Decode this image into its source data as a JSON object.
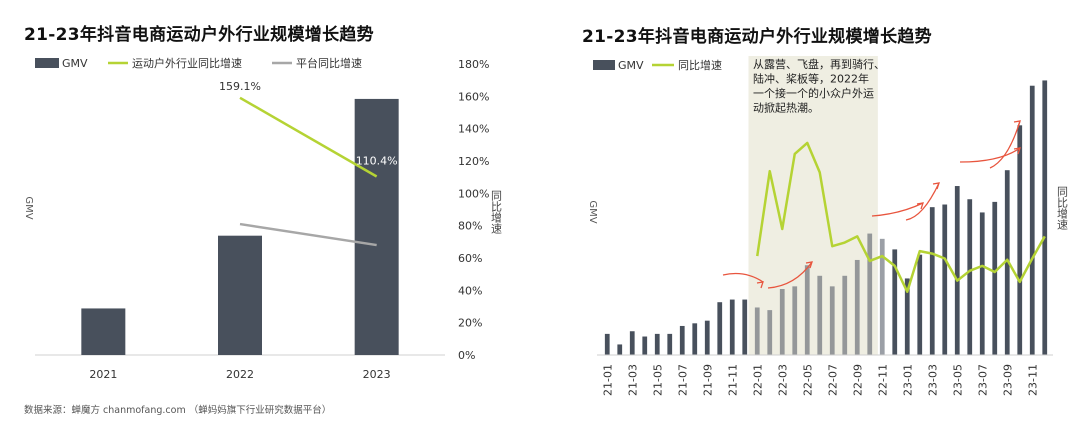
{
  "page": {
    "source": "数据来源：蝉魔方 chanmofang.com （蝉妈妈旗下行业研究数据平台）"
  },
  "chart_data": [
    {
      "type": "bar",
      "title": "21-23年抖音电商运动户外行业规模增长趋势",
      "categories": [
        "2021",
        "2022",
        "2023"
      ],
      "series": [
        {
          "name": "GMV",
          "kind": "bar",
          "axis": "left",
          "values": [
            0.16,
            0.41,
            0.88
          ]
        },
        {
          "name": "运动户外行业同比增速",
          "kind": "line",
          "axis": "right",
          "values": [
            null,
            159.1,
            110.4
          ]
        },
        {
          "name": "平台同比增速",
          "kind": "line",
          "axis": "right",
          "values": [
            null,
            81,
            68
          ]
        }
      ],
      "data_labels": [
        "159.1%",
        "110.4%"
      ],
      "ylabel": "GMV",
      "y2label": "同比增速",
      "y2lim": [
        0,
        180
      ],
      "y2ticks": [
        "0%",
        "20%",
        "40%",
        "60%",
        "80%",
        "100%",
        "120%",
        "140%",
        "160%",
        "180%"
      ],
      "colors": {
        "bar": "#48505c",
        "industry": "#b5d334",
        "platform": "#a7a7a7"
      },
      "legend": "top-left",
      "grid": false
    },
    {
      "type": "bar",
      "title": "21-23年抖音电商运动户外行业规模增长趋势",
      "categories": [
        "21-01",
        "21-02",
        "21-03",
        "21-04",
        "21-05",
        "21-06",
        "21-07",
        "21-08",
        "21-09",
        "21-10",
        "21-11",
        "21-12",
        "22-01",
        "22-02",
        "22-03",
        "22-04",
        "22-05",
        "22-06",
        "22-07",
        "22-08",
        "22-09",
        "22-10",
        "22-11",
        "22-12",
        "23-01",
        "23-02",
        "23-03",
        "23-04",
        "23-05",
        "23-06",
        "23-07",
        "23-08",
        "23-09",
        "23-10",
        "23-11",
        "23-12"
      ],
      "tick_labels": [
        "21-01",
        "21-03",
        "21-05",
        "21-07",
        "21-09",
        "21-11",
        "22-01",
        "22-03",
        "22-05",
        "22-07",
        "22-09",
        "22-11",
        "23-01",
        "23-03",
        "23-05",
        "23-07",
        "23-09",
        "23-11"
      ],
      "series": [
        {
          "name": "GMV",
          "kind": "bar",
          "values": [
            8,
            4,
            9,
            7,
            8,
            8,
            11,
            12,
            13,
            20,
            21,
            21,
            18,
            17,
            25,
            26,
            34,
            30,
            26,
            30,
            36,
            46,
            44,
            40,
            29,
            38,
            56,
            57,
            64,
            59,
            54,
            58,
            70,
            87,
            102,
            104
          ]
        },
        {
          "name": "同比增速",
          "kind": "line",
          "values": [
            null,
            null,
            null,
            null,
            null,
            null,
            null,
            null,
            null,
            null,
            null,
            null,
            65,
            134,
            87,
            148,
            157,
            133,
            73,
            76,
            81,
            61,
            65,
            57,
            36,
            69,
            67,
            63,
            45,
            53,
            57,
            52,
            62,
            44,
            63,
            81
          ]
        }
      ],
      "annotation": "从露营、飞盘，再到骑行、陆冲、桨板等，2022年一个接一个的小众户外运动掀起热潮。",
      "annotation_lines": [
        "从露营、飞盘，再到骑行、",
        "陆冲、桨板等，2022年",
        "一个接一个的小众户外运",
        "动掀起热潮。"
      ],
      "ylabel": "GMV",
      "y2label": "同比增速",
      "colors": {
        "bar": "#48505c",
        "line": "#b5d334",
        "highlight": "#efeee2",
        "arrow": "#e8553e"
      },
      "legend": "top-left",
      "grid": false
    }
  ]
}
